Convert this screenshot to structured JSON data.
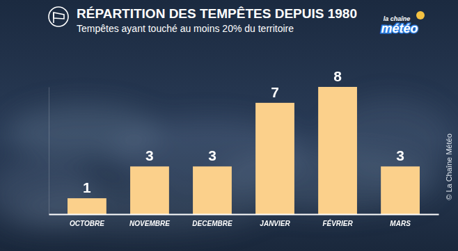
{
  "chart_data": {
    "type": "bar",
    "title": "RÉPARTITION DES TEMPÊTES DEPUIS 1980",
    "subtitle": "Tempêtes ayant touché au moins 20% du territoire",
    "categories": [
      "OCTOBRE",
      "NOVEMBRE",
      "DECEMBRE",
      "JANVIER",
      "FÉVRIER",
      "MARS"
    ],
    "values": [
      1,
      3,
      3,
      7,
      8,
      3
    ],
    "color": "#fbd08b",
    "ylim": [
      0,
      8
    ],
    "grid": false,
    "data_labels": true,
    "tick_labels": "x",
    "annotations": [
      "la chaîne",
      "météo",
      "© La Chaîne Météo"
    ]
  }
}
